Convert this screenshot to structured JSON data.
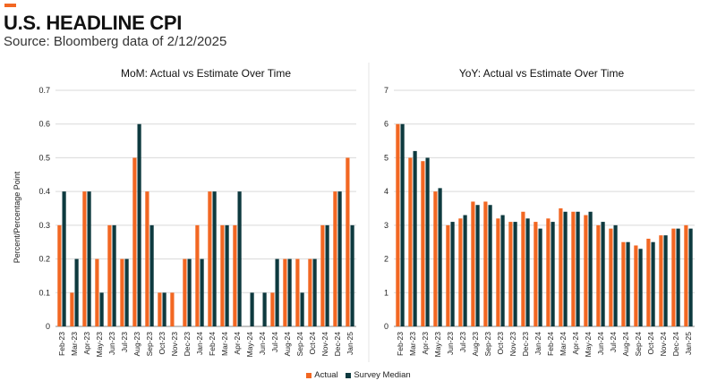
{
  "header": {
    "title": "U.S. HEADLINE CPI",
    "subtitle": "Source: Bloomberg data of 2/12/2025"
  },
  "colors": {
    "actual": "#f26722",
    "survey": "#0e3a3f",
    "accent": "#f26722"
  },
  "legend": {
    "actual": "Actual",
    "survey": "Survey Median"
  },
  "chart_data": [
    {
      "type": "bar",
      "title": "MoM: Actual vs Estimate Over Time",
      "ylabel": "Percent/Percentage Point",
      "xlabel": "",
      "ylim": [
        0,
        0.7
      ],
      "yticks": [
        "0",
        "0.1",
        "0.2",
        "0.3",
        "0.4",
        "0.5",
        "0.6",
        "0.7"
      ],
      "categories": [
        "Feb-23",
        "Mar-23",
        "Apr-23",
        "May-23",
        "Jun-23",
        "Jul-23",
        "Aug-23",
        "Sep-23",
        "Oct-23",
        "Nov-23",
        "Dec-23",
        "Jan-24",
        "Feb-24",
        "Mar-24",
        "Apr-24",
        "May-24",
        "Jun-24",
        "Jul-24",
        "Aug-24",
        "Sep-24",
        "Oct-24",
        "Nov-24",
        "Dec-24",
        "Jan-25"
      ],
      "series": [
        {
          "name": "Actual",
          "values": [
            0.3,
            0.1,
            0.4,
            0.2,
            0.3,
            0.2,
            0.5,
            0.4,
            0.1,
            0.1,
            0.2,
            0.3,
            0.4,
            0.3,
            0.3,
            0.0,
            0.0,
            0.1,
            0.2,
            0.2,
            0.2,
            0.3,
            0.4,
            0.5
          ]
        },
        {
          "name": "Survey Median",
          "values": [
            0.4,
            0.2,
            0.4,
            0.1,
            0.3,
            0.2,
            0.6,
            0.3,
            0.1,
            0.0,
            0.2,
            0.2,
            0.4,
            0.3,
            0.4,
            0.1,
            0.1,
            0.2,
            0.2,
            0.1,
            0.2,
            0.3,
            0.4,
            0.3
          ]
        }
      ]
    },
    {
      "type": "bar",
      "title": "YoY: Actual vs Estimate Over Time",
      "ylabel": "",
      "xlabel": "",
      "ylim": [
        0,
        7
      ],
      "yticks": [
        "0",
        "1",
        "2",
        "3",
        "4",
        "5",
        "6",
        "7"
      ],
      "categories": [
        "Feb-23",
        "Mar-23",
        "Apr-23",
        "May-23",
        "Jun-23",
        "Jul-23",
        "Aug-23",
        "Sep-23",
        "Oct-23",
        "Nov-23",
        "Dec-23",
        "Jan-24",
        "Feb-24",
        "Mar-24",
        "Apr-24",
        "May-24",
        "Jun-24",
        "Jul-24",
        "Aug-24",
        "Sep-24",
        "Oct-24",
        "Nov-24",
        "Dec-24",
        "Jan-25"
      ],
      "series": [
        {
          "name": "Actual",
          "values": [
            6.0,
            5.0,
            4.9,
            4.0,
            3.0,
            3.2,
            3.7,
            3.7,
            3.2,
            3.1,
            3.4,
            3.1,
            3.2,
            3.5,
            3.4,
            3.3,
            3.0,
            2.9,
            2.5,
            2.4,
            2.6,
            2.7,
            2.9,
            3.0
          ]
        },
        {
          "name": "Survey Median",
          "values": [
            6.0,
            5.2,
            5.0,
            4.1,
            3.1,
            3.3,
            3.6,
            3.6,
            3.3,
            3.1,
            3.2,
            2.9,
            3.1,
            3.4,
            3.4,
            3.4,
            3.1,
            3.0,
            2.5,
            2.3,
            2.5,
            2.7,
            2.9,
            2.9
          ]
        }
      ]
    }
  ]
}
